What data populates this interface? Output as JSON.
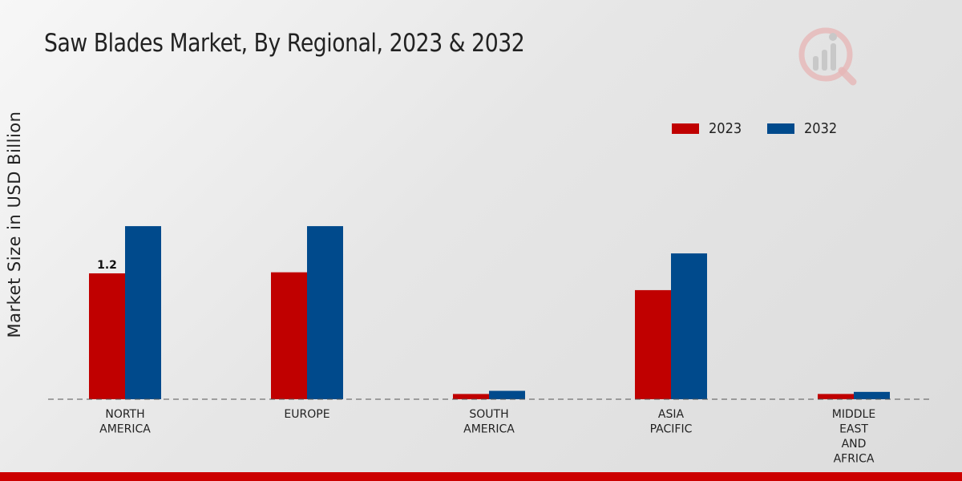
{
  "page": {
    "title": "Saw Blades Market, By Regional, 2023 & 2032",
    "bottom_bar_color": "#cc0000"
  },
  "chart_data": {
    "type": "bar",
    "title": "Saw Blades Market, By Regional, 2023 & 2032",
    "xlabel": "",
    "ylabel": "Market Size in USD Billion",
    "categories": [
      [
        "NORTH",
        "AMERICA"
      ],
      [
        "EUROPE"
      ],
      [
        "SOUTH",
        "AMERICA"
      ],
      [
        "ASIA",
        "PACIFIC"
      ],
      [
        "MIDDLE",
        "EAST",
        "AND",
        "AFRICA"
      ]
    ],
    "series": [
      {
        "name": "2023",
        "color": "#c00000",
        "values": [
          1.2,
          1.21,
          0.05,
          1.04,
          0.05
        ]
      },
      {
        "name": "2032",
        "color": "#004a8c",
        "values": [
          1.65,
          1.65,
          0.08,
          1.39,
          0.07
        ]
      }
    ],
    "data_labels": [
      {
        "series": 0,
        "index": 0,
        "text": "1.2"
      }
    ],
    "ylim": [
      0,
      3.5
    ],
    "grid": false,
    "baseline": "dashed",
    "legend": {
      "position": "top-right"
    }
  }
}
